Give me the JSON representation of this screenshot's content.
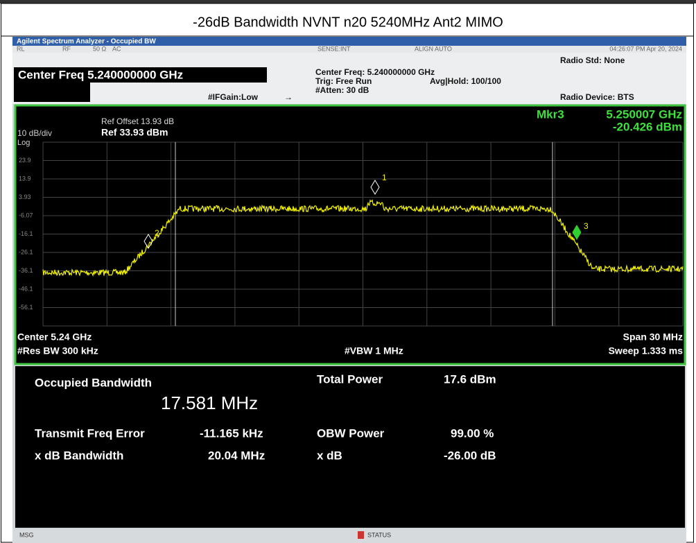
{
  "document_title": "-26dB Bandwidth NVNT n20 5240MHz Ant2 MIMO",
  "analyzer": {
    "window_title": "Agilent Spectrum Analyzer - Occupied BW",
    "toolbar": {
      "rl": "RL",
      "rf": "RF",
      "impedance": "50 Ω",
      "coupling": "AC",
      "sense": "SENSE:INT",
      "align": "ALIGN AUTO",
      "timestamp": "04:26:07 PM Apr 20, 2024"
    },
    "header": {
      "center_freq": "Center Freq 5.240000000 GHz",
      "if_gain": "#IFGain:Low",
      "center_freq_info": "Center Freq: 5.240000000 GHz",
      "trig": "Trig: Free Run",
      "avg_hold": "Avg|Hold: 100/100",
      "atten": "#Atten: 30 dB",
      "radio_std": "Radio Std: None",
      "radio_device": "Radio Device: BTS"
    },
    "graph": {
      "ref_offset": "Ref Offset 13.93 dB",
      "ref_level": "Ref 33.93 dBm",
      "scale": "10 dB/div",
      "scale_type": "Log",
      "marker_readout": {
        "name": "Mkr3",
        "freq": "5.250007 GHz",
        "level": "-20.426 dBm"
      },
      "y_labels": [
        "23.9",
        "13.9",
        "3.93",
        "-6.07",
        "-16.1",
        "-26.1",
        "-36.1",
        "-46.1",
        "-56.1"
      ],
      "markers": [
        "1",
        "2",
        "3"
      ],
      "center": "Center 5.24 GHz",
      "res_bw": "#Res BW 300 kHz",
      "vbw": "#VBW 1 MHz",
      "span": "Span 30 MHz",
      "sweep": "Sweep 1.333 ms"
    },
    "results": {
      "occupied_bw_label": "Occupied Bandwidth",
      "occupied_bw_value": "17.581 MHz",
      "total_power_label": "Total Power",
      "total_power_value": "17.6 dBm",
      "freq_error_label": "Transmit Freq Error",
      "freq_error_value": "-11.165 kHz",
      "obw_power_label": "OBW Power",
      "obw_power_value": "99.00 %",
      "xdb_bw_label": "x dB Bandwidth",
      "xdb_bw_value": "20.04 MHz",
      "xdb_label": "x dB",
      "xdb_value": "-26.00 dB"
    },
    "status_bar": {
      "msg": "MSG",
      "status": "STATUS"
    }
  }
}
